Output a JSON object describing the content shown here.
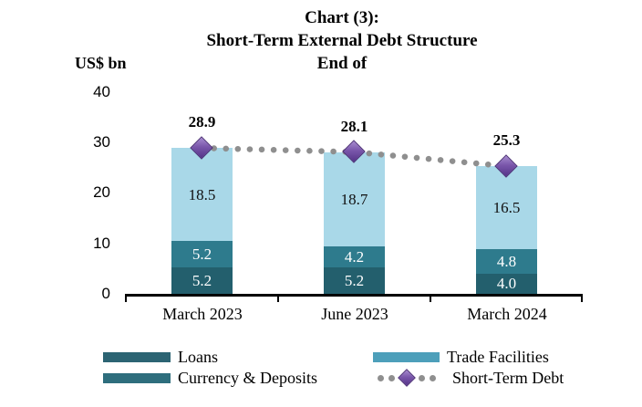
{
  "title": {
    "lines": [
      "Chart (3):",
      "Short-Term External Debt Structure",
      "End of"
    ]
  },
  "chart_data": {
    "type": "bar",
    "stacked": true,
    "title": "Chart (3): Short-Term External Debt Structure End of",
    "ylabel": "US$ bn",
    "ylim": [
      0,
      40
    ],
    "yticks": [
      "40",
      "30",
      "20",
      "10",
      "0"
    ],
    "ytick_values": [
      40,
      30,
      20,
      10,
      0
    ],
    "grid": false,
    "legend_position": "bottom",
    "categories": [
      "March 2023",
      "June 2023",
      "March 2024"
    ],
    "series": [
      {
        "name": "Loans",
        "values": [
          5.2,
          5.2,
          4.0
        ],
        "bar_color": "#235f6d",
        "label_color": "#ffffff"
      },
      {
        "name": "Currency & Deposits",
        "values": [
          5.2,
          4.2,
          4.8
        ],
        "bar_color": "#2e7b8d",
        "label_color": "#ffffff"
      },
      {
        "name": "Trade Facilities",
        "values": [
          18.5,
          18.7,
          16.5
        ],
        "bar_color": "#a9d8e8",
        "label_color": "#111111"
      }
    ],
    "line_series": {
      "name": "Short-Term Debt",
      "type": "line",
      "values": [
        28.9,
        28.1,
        25.3
      ],
      "dot_color": "#8f8f8f",
      "marker": "diamond",
      "marker_color": "#7a57ab"
    }
  },
  "legend": {
    "items": [
      {
        "label": "Loans",
        "swatch": "bar",
        "color": "#2c6473"
      },
      {
        "label": "Currency & Deposits",
        "swatch": "bar",
        "color": "#2e6e7d"
      },
      {
        "label": "Trade Facilities",
        "swatch": "bar",
        "color": "#4d9fba"
      },
      {
        "label": "Short-Term Debt",
        "swatch": "dotted-diamond",
        "color": "#8f8f8f"
      }
    ]
  }
}
